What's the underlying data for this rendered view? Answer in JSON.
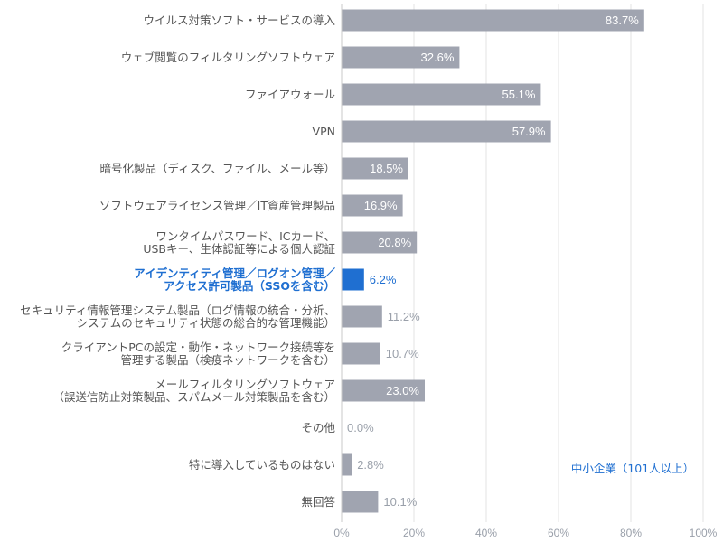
{
  "chart_data": {
    "type": "bar",
    "orientation": "horizontal",
    "categories": [
      [
        "ウイルス対策ソフト・サービスの導入"
      ],
      [
        "ウェブ閲覧のフィルタリングソフトウェア"
      ],
      [
        "ファイアウォール"
      ],
      [
        "VPN"
      ],
      [
        "暗号化製品（ディスク、ファイル、メール等）"
      ],
      [
        "ソフトウェアライセンス管理／IT資産管理製品"
      ],
      [
        "ワンタイムパスワード、ICカード、",
        "USBキー、生体認証等による個人認証"
      ],
      [
        "アイデンティティ管理／ログオン管理／",
        "アクセス許可製品（SSOを含む）"
      ],
      [
        "セキュリティ情報管理システム製品（ログ情報の統合・分析、",
        "システムのセキュリティ状態の総合的な管理機能）"
      ],
      [
        "クライアントPCの設定・動作・ネットワーク接続等を",
        "管理する製品（検疫ネットワークを含む）"
      ],
      [
        "メールフィルタリングソフトウェア",
        "（誤送信防止対策製品、スパムメール対策製品を含む）"
      ],
      [
        "その他"
      ],
      [
        "特に導入しているものはない"
      ],
      [
        "無回答"
      ]
    ],
    "values": [
      83.7,
      32.6,
      55.1,
      57.9,
      18.5,
      16.9,
      20.8,
      6.2,
      11.2,
      10.7,
      23.0,
      0.0,
      2.8,
      10.1
    ],
    "value_labels": [
      "83.7%",
      "32.6%",
      "55.1%",
      "57.9%",
      "18.5%",
      "16.9%",
      "20.8%",
      "6.2%",
      "11.2%",
      "10.7%",
      "23.0%",
      "0.0%",
      "2.8%",
      "10.1%"
    ],
    "highlight_index": 7,
    "xlim": [
      0,
      100
    ],
    "xticks": [
      0,
      20,
      40,
      60,
      80,
      100
    ],
    "xtick_labels": [
      "0%",
      "20%",
      "40%",
      "60%",
      "80%",
      "100%"
    ],
    "grid": true,
    "annotation": "中小企業（101人以上）",
    "colors": {
      "bar": "#a0a4b0",
      "highlight_bar": "#1f6fd1",
      "highlight_text": "#1f6fd1",
      "inside_label": "#ffffff",
      "outside_label": "#9aa0aa",
      "grid": "#e3e3e3",
      "axis": "#c8c8c8",
      "category_text": "#555555"
    }
  }
}
